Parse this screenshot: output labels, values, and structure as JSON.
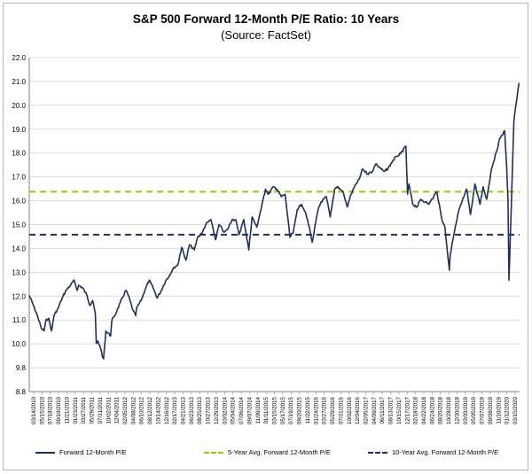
{
  "chart_data": {
    "type": "line",
    "title": "S&P 500 Forward 12-Month P/E Ratio: 10 Years",
    "subtitle": "(Source: FactSet)",
    "xlabel": "",
    "ylabel": "",
    "ylim": [
      8.8,
      22.0
    ],
    "yticks": [
      "22.0",
      "21.0",
      "20.0",
      "19.0",
      "18.0",
      "17.0",
      "16.0",
      "15.0",
      "14.0",
      "13.0",
      "12.0",
      "11.0",
      "10.0",
      "9.8",
      "8.8"
    ],
    "grid": "horizontal",
    "legend_position": "bottom",
    "x_date_labels": [
      "03/14/2010",
      "05/15/2010",
      "07/18/2010",
      "09/19/2010",
      "11/21/2010",
      "01/23/2011",
      "03/27/2011",
      "05/29/2011",
      "07/31/2011",
      "10/02/2011",
      "12/04/2011",
      "02/05/2012",
      "04/08/2012",
      "06/10/2012",
      "08/12/2012",
      "10/14/2012",
      "12/16/2012",
      "02/17/2013",
      "04/21/2013",
      "06/23/2013",
      "08/25/2013",
      "10/27/2013",
      "12/29/2013",
      "03/02/2014",
      "05/04/2014",
      "07/06/2014",
      "09/07/2014",
      "11/09/2014",
      "01/11/2015",
      "03/15/2015",
      "05/17/2015",
      "07/19/2015",
      "09/20/2015",
      "11/22/2015",
      "01/24/2016",
      "03/27/2016",
      "05/29/2016",
      "07/31/2016",
      "10/02/2016",
      "12/04/2016",
      "02/05/2017",
      "04/09/2017",
      "06/11/2017",
      "08/13/2017",
      "10/15/2017",
      "12/17/2017",
      "02/18/2018",
      "04/22/2018",
      "06/24/2018",
      "08/26/2018",
      "10/28/2018",
      "12/30/2018",
      "03/03/2019",
      "05/05/2019",
      "07/07/2019",
      "09/08/2019",
      "11/10/2019",
      "01/12/2020",
      "03/15/2020"
    ],
    "series": [
      {
        "name": "Forward 12-Month P/E",
        "style": "solid",
        "color": "#1f2f5f",
        "points": [
          [
            "2010-03-14",
            12.6
          ],
          [
            "2010-04-15",
            12.2
          ],
          [
            "2010-05-15",
            11.8
          ],
          [
            "2010-06-15",
            11.3
          ],
          [
            "2010-07-05",
            11.2
          ],
          [
            "2010-07-18",
            11.6
          ],
          [
            "2010-08-10",
            11.7
          ],
          [
            "2010-08-31",
            11.2
          ],
          [
            "2010-09-19",
            11.8
          ],
          [
            "2010-10-20",
            12.1
          ],
          [
            "2010-11-21",
            12.5
          ],
          [
            "2010-12-20",
            12.8
          ],
          [
            "2011-01-23",
            13.0
          ],
          [
            "2011-02-20",
            13.2
          ],
          [
            "2011-03-15",
            12.8
          ],
          [
            "2011-03-27",
            13.0
          ],
          [
            "2011-04-25",
            12.9
          ],
          [
            "2011-05-29",
            12.6
          ],
          [
            "2011-06-20",
            12.2
          ],
          [
            "2011-07-10",
            12.4
          ],
          [
            "2011-07-31",
            11.9
          ],
          [
            "2011-08-08",
            10.7
          ],
          [
            "2011-08-20",
            10.8
          ],
          [
            "2011-09-10",
            10.5
          ],
          [
            "2011-09-22",
            10.2
          ],
          [
            "2011-10-02",
            10.1
          ],
          [
            "2011-10-20",
            11.2
          ],
          [
            "2011-11-25",
            11.0
          ],
          [
            "2011-12-04",
            11.6
          ],
          [
            "2012-01-05",
            11.9
          ],
          [
            "2012-02-05",
            12.3
          ],
          [
            "2012-03-20",
            12.8
          ],
          [
            "2012-04-08",
            12.6
          ],
          [
            "2012-05-15",
            12.0
          ],
          [
            "2012-06-03",
            11.8
          ],
          [
            "2012-06-10",
            12.1
          ],
          [
            "2012-07-15",
            12.4
          ],
          [
            "2012-08-12",
            12.8
          ],
          [
            "2012-09-15",
            13.2
          ],
          [
            "2012-10-14",
            12.9
          ],
          [
            "2012-11-15",
            12.5
          ],
          [
            "2012-12-16",
            12.8
          ],
          [
            "2013-01-20",
            13.2
          ],
          [
            "2013-02-17",
            13.4
          ],
          [
            "2013-03-20",
            13.7
          ],
          [
            "2013-04-21",
            13.8
          ],
          [
            "2013-05-20",
            14.5
          ],
          [
            "2013-06-23",
            14.0
          ],
          [
            "2013-07-20",
            14.6
          ],
          [
            "2013-08-25",
            14.4
          ],
          [
            "2013-09-20",
            14.9
          ],
          [
            "2013-10-27",
            15.1
          ],
          [
            "2013-11-20",
            15.4
          ],
          [
            "2013-12-29",
            15.6
          ],
          [
            "2014-02-03",
            14.8
          ],
          [
            "2014-03-02",
            15.4
          ],
          [
            "2014-04-10",
            15.1
          ],
          [
            "2014-05-04",
            15.2
          ],
          [
            "2014-06-10",
            15.6
          ],
          [
            "2014-07-06",
            15.6
          ],
          [
            "2014-08-01",
            15.0
          ],
          [
            "2014-09-07",
            15.6
          ],
          [
            "2014-10-15",
            14.4
          ],
          [
            "2014-11-09",
            15.7
          ],
          [
            "2014-12-15",
            15.3
          ],
          [
            "2015-01-11",
            15.9
          ],
          [
            "2015-02-20",
            16.8
          ],
          [
            "2015-03-15",
            16.6
          ],
          [
            "2015-04-20",
            16.9
          ],
          [
            "2015-05-17",
            16.8
          ],
          [
            "2015-06-20",
            16.5
          ],
          [
            "2015-07-19",
            16.6
          ],
          [
            "2015-08-25",
            14.9
          ],
          [
            "2015-09-20",
            15.1
          ],
          [
            "2015-10-20",
            16.0
          ],
          [
            "2015-11-22",
            16.2
          ],
          [
            "2015-12-20",
            15.9
          ],
          [
            "2016-01-24",
            15.2
          ],
          [
            "2016-02-11",
            14.7
          ],
          [
            "2016-03-27",
            16.0
          ],
          [
            "2016-04-20",
            16.3
          ],
          [
            "2016-05-29",
            16.5
          ],
          [
            "2016-06-27",
            15.7
          ],
          [
            "2016-07-31",
            16.8
          ],
          [
            "2016-08-20",
            16.9
          ],
          [
            "2016-10-02",
            16.7
          ],
          [
            "2016-11-04",
            16.1
          ],
          [
            "2016-12-04",
            16.6
          ],
          [
            "2017-01-10",
            17.0
          ],
          [
            "2017-02-05",
            17.2
          ],
          [
            "2017-03-01",
            17.6
          ],
          [
            "2017-04-09",
            17.4
          ],
          [
            "2017-05-15",
            17.5
          ],
          [
            "2017-06-11",
            17.8
          ],
          [
            "2017-07-20",
            17.6
          ],
          [
            "2017-08-13",
            17.5
          ],
          [
            "2017-09-10",
            17.6
          ],
          [
            "2017-10-15",
            17.9
          ],
          [
            "2017-11-15",
            18.1
          ],
          [
            "2017-12-17",
            18.2
          ],
          [
            "2018-01-26",
            18.5
          ],
          [
            "2018-02-08",
            16.6
          ],
          [
            "2018-02-18",
            17.0
          ],
          [
            "2018-03-20",
            16.2
          ],
          [
            "2018-04-22",
            16.1
          ],
          [
            "2018-05-20",
            16.4
          ],
          [
            "2018-06-24",
            16.3
          ],
          [
            "2018-07-20",
            16.2
          ],
          [
            "2018-08-26",
            16.5
          ],
          [
            "2018-09-20",
            16.7
          ],
          [
            "2018-10-28",
            15.6
          ],
          [
            "2018-11-20",
            15.3
          ],
          [
            "2018-12-24",
            13.6
          ],
          [
            "2018-12-30",
            14.2
          ],
          [
            "2019-01-20",
            14.8
          ],
          [
            "2019-02-20",
            15.6
          ],
          [
            "2019-03-03",
            15.9
          ],
          [
            "2019-04-20",
            16.6
          ],
          [
            "2019-05-05",
            16.8
          ],
          [
            "2019-06-03",
            15.8
          ],
          [
            "2019-07-07",
            17.0
          ],
          [
            "2019-08-15",
            16.2
          ],
          [
            "2019-09-08",
            16.9
          ],
          [
            "2019-10-05",
            16.4
          ],
          [
            "2019-11-10",
            17.6
          ],
          [
            "2019-12-20",
            18.3
          ],
          [
            "2020-01-12",
            18.8
          ],
          [
            "2020-02-19",
            19.1
          ],
          [
            "2020-03-05",
            17.7
          ],
          [
            "2020-03-15",
            16.4
          ],
          [
            "2020-03-23",
            13.2
          ],
          [
            "2020-04-15",
            17.0
          ],
          [
            "2020-04-30",
            19.5
          ],
          [
            "2020-05-20",
            20.3
          ],
          [
            "2020-06-08",
            21.0
          ]
        ]
      },
      {
        "name": "5-Year Avg. Forward 12-Month P/E",
        "style": "dashed",
        "color": "#99cc00",
        "value": 16.7
      },
      {
        "name": "10-Year Avg. Forward 12-Month P/E",
        "style": "dashed",
        "color": "#1f2f5f",
        "value": 15.0
      }
    ]
  }
}
